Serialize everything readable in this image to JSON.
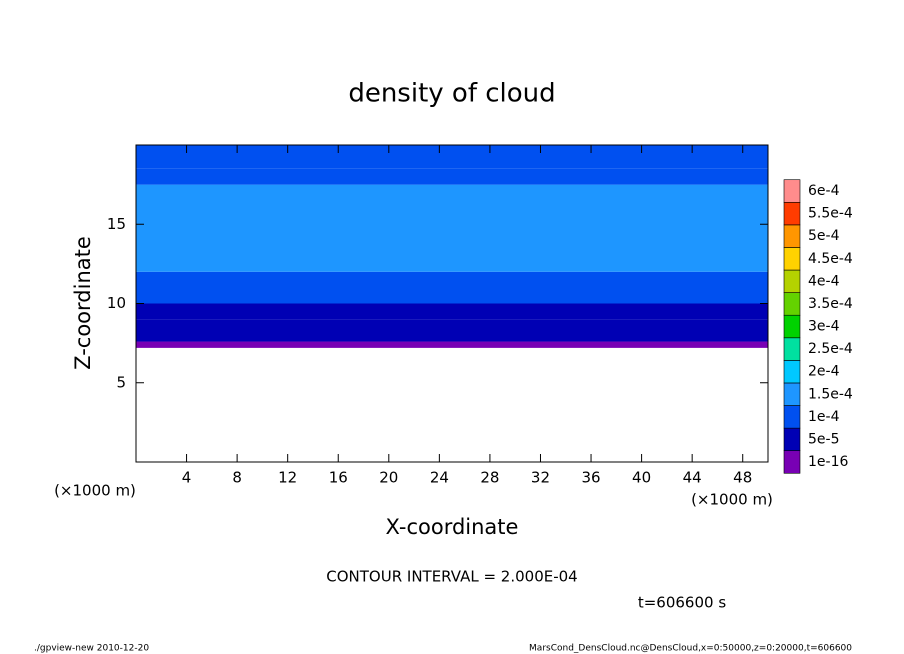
{
  "chart_data": {
    "type": "contour",
    "title": "density of cloud",
    "x_label": "X-coordinate",
    "y_label": "Z-coordinate",
    "x_unit": "(×1000 m)",
    "y_unit": "(×1000 m)",
    "xlim": [
      0,
      50
    ],
    "ylim": [
      0,
      20
    ],
    "xticks": [
      4,
      8,
      12,
      16,
      20,
      24,
      28,
      32,
      36,
      40,
      44,
      48
    ],
    "yticks": [
      5,
      10,
      15
    ],
    "z": [
      7.2,
      7.6,
      9.0,
      10.0,
      12.0,
      17.5,
      18.5
    ],
    "values": [
      2e-05,
      6e-05,
      9e-05,
      0.00012,
      0.00016,
      0.00013,
      0.00011
    ],
    "levels": [
      {
        "value": 1e-16,
        "label": "1e-16"
      },
      {
        "value": 5e-05,
        "label": "5e-5"
      },
      {
        "value": 0.0001,
        "label": "1e-4"
      },
      {
        "value": 0.00015,
        "label": "1.5e-4"
      },
      {
        "value": 0.0002,
        "label": "2e-4"
      },
      {
        "value": 0.00025,
        "label": "2.5e-4"
      },
      {
        "value": 0.0003,
        "label": "3e-4"
      },
      {
        "value": 0.00035,
        "label": "3.5e-4"
      },
      {
        "value": 0.0004,
        "label": "4e-4"
      },
      {
        "value": 0.00045,
        "label": "4.5e-4"
      },
      {
        "value": 0.0005,
        "label": "5e-4"
      },
      {
        "value": 0.00055,
        "label": "5.5e-4"
      },
      {
        "value": 0.0006,
        "label": "6e-4"
      }
    ],
    "level_colors": [
      "#7800b4",
      "#0000b4",
      "#0050f0",
      "#1e96ff",
      "#00c8ff",
      "#00e0a0",
      "#00d200",
      "#64d200",
      "#b4d200",
      "#ffd200",
      "#ff9600",
      "#ff3c00",
      "#ff8c8c"
    ],
    "contour_interval": "CONTOUR INTERVAL = 2.000E-04",
    "time_label": "t=606600 s",
    "footer_left": "./gpview-new   2010-12-20",
    "footer_right": "MarsCond_DensCloud.nc@DensCloud,x=0:50000,z=0:20000,t=606600"
  }
}
